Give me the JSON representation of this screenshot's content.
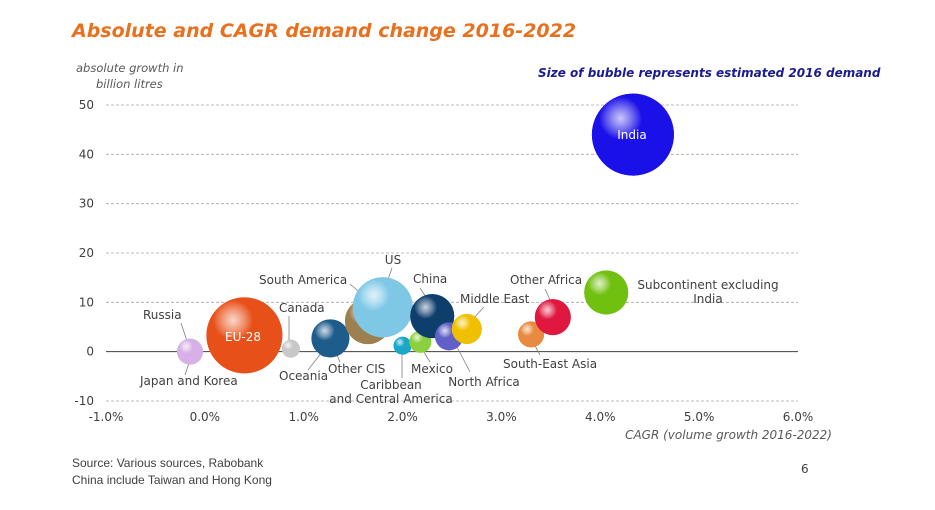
{
  "chart_data": {
    "type": "bubble",
    "title": "Absolute and CAGR demand change 2016-2022",
    "ylabel_lines": [
      "absolute growth in",
      "billion litres"
    ],
    "xlabel": "CAGR (volume growth 2016-2022)",
    "note": "Size of bubble represents estimated 2016 demand",
    "xlim": [
      -1.0,
      6.0
    ],
    "ylim": [
      -10,
      50
    ],
    "xticks": [
      "-1.0%",
      "0.0%",
      "1.0%",
      "2.0%",
      "3.0%",
      "4.0%",
      "5.0%",
      "6.0%"
    ],
    "yticks": [
      "-10",
      "0",
      "10",
      "20",
      "30",
      "40",
      "50"
    ],
    "grid": true,
    "points": [
      {
        "name": "Russia",
        "x": -0.15,
        "y": 0.2,
        "size": 9,
        "color": "#c040d8"
      },
      {
        "name": "Japan and Korea",
        "x": -0.15,
        "y": 0.0,
        "size": 13,
        "color": "#d8b0e8"
      },
      {
        "name": "EU-28",
        "x": 0.4,
        "y": 3.3,
        "size": 38,
        "color": "#e8501a"
      },
      {
        "name": "Canada",
        "x": 0.87,
        "y": 0.6,
        "size": 9,
        "color": "#c8c8c8"
      },
      {
        "name": "Oceania",
        "x": 1.22,
        "y": 0.6,
        "size": 8,
        "color": "#808080"
      },
      {
        "name": "Other CIS",
        "x": 1.27,
        "y": 2.7,
        "size": 19,
        "color": "#1e5c8c"
      },
      {
        "name": "South America",
        "x": 1.65,
        "y": 6.2,
        "size": 23,
        "color": "#9c8050"
      },
      {
        "name": "US",
        "x": 1.8,
        "y": 9.0,
        "size": 30,
        "color": "#7ec8e6"
      },
      {
        "name": "Caribbean and Central America",
        "x": 2.0,
        "y": 1.2,
        "size": 9,
        "color": "#1aa8c8"
      },
      {
        "name": "Mexico",
        "x": 2.18,
        "y": 2.0,
        "size": 11,
        "color": "#8cd040"
      },
      {
        "name": "China",
        "x": 2.3,
        "y": 7.2,
        "size": 22,
        "color": "#0e3e6c"
      },
      {
        "name": "North Africa",
        "x": 2.47,
        "y": 3.1,
        "size": 14,
        "color": "#6060c8"
      },
      {
        "name": "Middle East",
        "x": 2.65,
        "y": 4.6,
        "size": 15,
        "color": "#f0c000"
      },
      {
        "name": "South-East Asia",
        "x": 3.3,
        "y": 3.5,
        "size": 13,
        "color": "#e88a40"
      },
      {
        "name": "Other Africa",
        "x": 3.52,
        "y": 7.0,
        "size": 18,
        "color": "#e01840"
      },
      {
        "name": "Subcontinent excluding India",
        "x": 4.06,
        "y": 12.0,
        "size": 22,
        "color": "#70c010"
      },
      {
        "name": "India",
        "x": 4.33,
        "y": 44.0,
        "size": 41,
        "color": "#1a10e8"
      }
    ]
  },
  "footer": {
    "source_line1": "Source: Various sources, Rabobank",
    "source_line2": "China include Taiwan and Hong Kong",
    "page_number": "6"
  }
}
